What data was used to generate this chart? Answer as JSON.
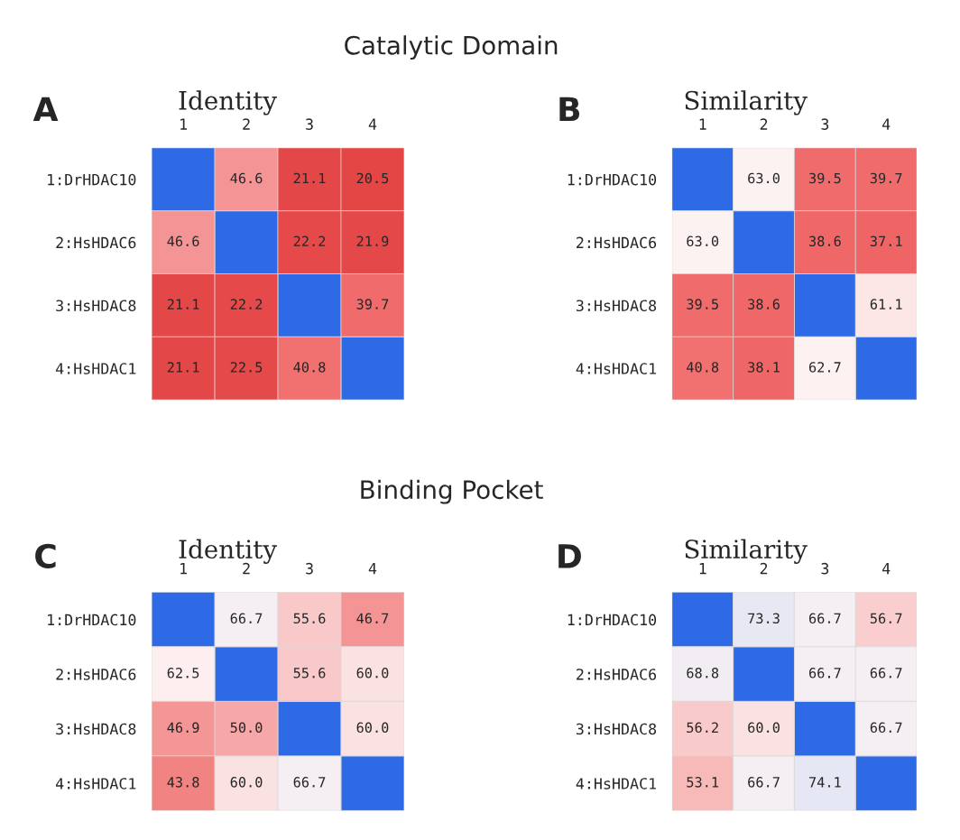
{
  "chart_data": [
    {
      "type": "heatmap",
      "data_labels": true,
      "subtitle": "Catalytic Domain",
      "title": "Identity",
      "annotations": [
        "A"
      ],
      "categories": [
        "1",
        "2",
        "3",
        "4"
      ],
      "y_categories": [
        "1:DrHDAC10",
        "2:HsHDAC6",
        "3:HsHDAC8",
        "4:HsHDAC1"
      ],
      "cells": [
        [
          null,
          46.6,
          21.1,
          20.5
        ],
        [
          46.6,
          null,
          22.2,
          21.9
        ],
        [
          21.1,
          22.2,
          null,
          39.7
        ],
        [
          21.1,
          22.5,
          40.8,
          null
        ]
      ],
      "cell_labels": [
        [
          null,
          "46.6",
          "21.1",
          "20.5"
        ],
        [
          "46.6",
          null,
          "22.2",
          "21.9"
        ],
        [
          "21.1",
          "22.2",
          null,
          "39.7"
        ],
        [
          "21.1",
          "22.5",
          "40.8",
          null
        ]
      ]
    },
    {
      "type": "heatmap",
      "data_labels": true,
      "title": "Similarity",
      "annotations": [
        "B"
      ],
      "categories": [
        "1",
        "2",
        "3",
        "4"
      ],
      "y_categories": [
        "1:DrHDAC10",
        "2:HsHDAC6",
        "3:HsHDAC8",
        "4:HsHDAC1"
      ],
      "cells": [
        [
          null,
          63.0,
          39.5,
          39.7
        ],
        [
          63.0,
          null,
          38.6,
          37.1
        ],
        [
          39.5,
          38.6,
          null,
          61.1
        ],
        [
          40.8,
          38.1,
          62.7,
          null
        ]
      ],
      "cell_labels": [
        [
          null,
          "63.0",
          "39.5",
          "39.7"
        ],
        [
          "63.0",
          null,
          "38.6",
          "37.1"
        ],
        [
          "39.5",
          "38.6",
          null,
          "61.1"
        ],
        [
          "40.8",
          "38.1",
          "62.7",
          null
        ]
      ]
    },
    {
      "type": "heatmap",
      "data_labels": true,
      "subtitle": "Binding Pocket",
      "title": "Identity",
      "annotations": [
        "C"
      ],
      "categories": [
        "1",
        "2",
        "3",
        "4"
      ],
      "y_categories": [
        "1:DrHDAC10",
        "2:HsHDAC6",
        "3:HsHDAC8",
        "4:HsHDAC1"
      ],
      "cells": [
        [
          null,
          66.7,
          55.6,
          46.7
        ],
        [
          62.5,
          null,
          55.6,
          60.0
        ],
        [
          46.9,
          50.0,
          null,
          60.0
        ],
        [
          43.8,
          60.0,
          66.7,
          null
        ]
      ],
      "cell_labels": [
        [
          null,
          "66.7",
          "55.6",
          "46.7"
        ],
        [
          "62.5",
          null,
          "55.6",
          "60.0"
        ],
        [
          "46.9",
          "50.0",
          null,
          "60.0"
        ],
        [
          "43.8",
          "60.0",
          "66.7",
          null
        ]
      ]
    },
    {
      "type": "heatmap",
      "data_labels": true,
      "title": "Similarity",
      "annotations": [
        "D"
      ],
      "categories": [
        "1",
        "2",
        "3",
        "4"
      ],
      "y_categories": [
        "1:DrHDAC10",
        "2:HsHDAC6",
        "3:HsHDAC8",
        "4:HsHDAC1"
      ],
      "cells": [
        [
          null,
          73.3,
          66.7,
          56.7
        ],
        [
          68.8,
          null,
          66.7,
          66.7
        ],
        [
          56.2,
          60.0,
          null,
          66.7
        ],
        [
          53.1,
          66.7,
          74.1,
          null
        ]
      ],
      "cell_labels": [
        [
          null,
          "73.3",
          "66.7",
          "56.7"
        ],
        [
          "68.8",
          null,
          "66.7",
          "66.7"
        ],
        [
          "56.2",
          "60.0",
          null,
          "66.7"
        ],
        [
          "53.1",
          "66.7",
          "74.1",
          null
        ]
      ]
    }
  ]
}
